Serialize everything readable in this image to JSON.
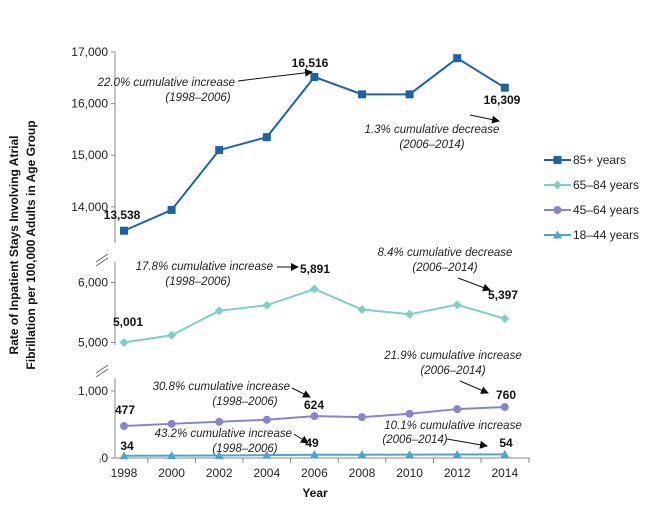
{
  "chart_data": {
    "type": "line",
    "title": "",
    "xlabel": "Year",
    "ylabel": [
      "Rate of Inpatient Stays Involving Atrial",
      "Fibrillation per 100,000 Adults in Age Group"
    ],
    "categories": [
      "1998",
      "2000",
      "2002",
      "2004",
      "2006",
      "2008",
      "2010",
      "2012",
      "2014"
    ],
    "y_axis_breaks": true,
    "panels": [
      {
        "ylim": [
          13300,
          17000
        ],
        "ticks": [
          "14,000",
          "15,000",
          "16,000",
          "17,000"
        ],
        "tick_values": [
          14000,
          15000,
          16000,
          17000
        ],
        "series": [
          0
        ]
      },
      {
        "ylim": [
          4800,
          6200
        ],
        "ticks": [
          "5,000",
          "6,000"
        ],
        "tick_values": [
          5000,
          6000
        ],
        "series": [
          1
        ]
      },
      {
        "ylim": [
          0,
          1180
        ],
        "ticks": [
          "0",
          "1,000"
        ],
        "tick_values": [
          0,
          1000
        ],
        "series": [
          2,
          3
        ]
      }
    ],
    "series": [
      {
        "name": "85+ years",
        "color": "#1B62A8",
        "marker": "square",
        "values": [
          13538,
          13940,
          15100,
          15350,
          16516,
          16180,
          16180,
          16880,
          16309
        ]
      },
      {
        "name": "65–84 years",
        "color": "#7ECFC4",
        "marker": "diamond",
        "values": [
          5001,
          5120,
          5530,
          5620,
          5891,
          5550,
          5470,
          5630,
          5397
        ]
      },
      {
        "name": "45–64 years",
        "color": "#8585CF",
        "marker": "circle",
        "values": [
          477,
          510,
          540,
          570,
          624,
          610,
          660,
          730,
          760
        ]
      },
      {
        "name": "18–44 years",
        "color": "#4BA6CF",
        "marker": "triangle",
        "values": [
          34,
          36,
          38,
          42,
          49,
          49,
          50,
          52,
          54
        ]
      }
    ],
    "data_labels": [
      "13,538",
      "16,516",
      "16,309",
      "5,001",
      "5,891",
      "5,397",
      "477",
      "624",
      "760",
      "34",
      "49",
      "54"
    ],
    "annotations": [
      {
        "line1": "22.0% cumulative increase",
        "line2": "(1998–2006)"
      },
      {
        "line1": "1.3% cumulative decrease",
        "line2": "(2006–2014)"
      },
      {
        "line1": "17.8% cumulative increase",
        "line2": "(1998–2006)"
      },
      {
        "line1": "8.4% cumulative decrease",
        "line2": "(2006–2014)"
      },
      {
        "line1": "30.8% cumulative increase",
        "line2": "(1998–2006)"
      },
      {
        "line1": "21.9% cumulative increase",
        "line2": "(2006–2014)"
      },
      {
        "line1": "43.2% cumulative increase",
        "line2": "(1998–2006)"
      },
      {
        "line1": "10.1% cumulative increase",
        "line2": "(2006–2014)"
      }
    ],
    "legend_position": "right",
    "grid": false
  }
}
